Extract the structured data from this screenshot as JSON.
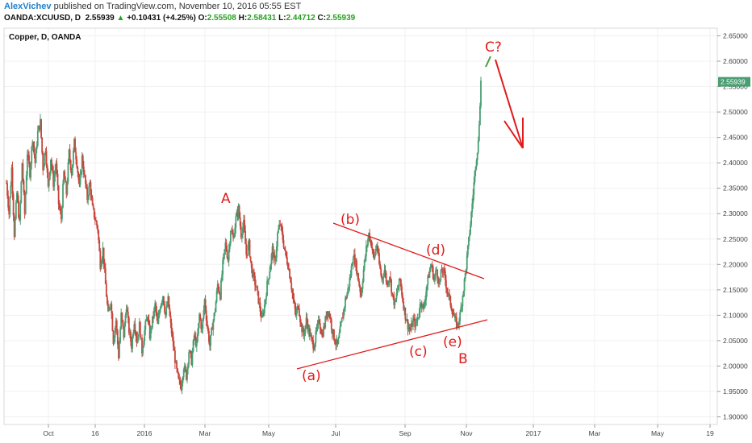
{
  "header": {
    "author": "AlexVichev",
    "published": "published on TradingView.com, November 10, 2016 05:55 EST",
    "symbol": "OANDA:XCUUSD, D",
    "last": "2.55939",
    "change_arrow": "▲",
    "change": "+0.10431 (+4.25%)",
    "o_label": "O:",
    "o_value": "2.55508",
    "h_label": "H:",
    "h_value": "2.58431",
    "l_label": "L:",
    "l_value": "2.44712",
    "c_label": "C:",
    "c_value": "2.55939"
  },
  "chart_data": {
    "type": "candlestick",
    "title": "Copper, D, OANDA",
    "x_ticks": [
      "Oct",
      "16",
      "2016",
      "Mar",
      "May",
      "Jul",
      "Sep",
      "Nov",
      "2017",
      "Mar",
      "May",
      "19"
    ],
    "y_ticks": [
      "2.65000",
      "2.60000",
      "2.55000",
      "2.50000",
      "2.45000",
      "2.40000",
      "2.35000",
      "2.30000",
      "2.25000",
      "2.20000",
      "2.15000",
      "2.10000",
      "2.05000",
      "2.00000",
      "1.95000",
      "1.90000"
    ],
    "ylim": [
      1.885,
      2.665
    ],
    "current_price_label": "2.55939",
    "current_price": 2.55939,
    "colors": {
      "up": "#4a9e73",
      "down": "#c8463c",
      "annotation": "#e01b1b",
      "price_tag": "#4a9e73"
    },
    "price_path": [
      2.36,
      2.3,
      2.39,
      2.26,
      2.34,
      2.28,
      2.4,
      2.3,
      2.42,
      2.38,
      2.45,
      2.4,
      2.46,
      2.48,
      2.39,
      2.43,
      2.35,
      2.41,
      2.36,
      2.4,
      2.32,
      2.29,
      2.38,
      2.34,
      2.42,
      2.38,
      2.44,
      2.4,
      2.35,
      2.41,
      2.37,
      2.33,
      2.36,
      2.31,
      2.29,
      2.27,
      2.2,
      2.23,
      2.16,
      2.1,
      2.13,
      2.05,
      2.09,
      2.02,
      2.1,
      2.06,
      2.12,
      2.07,
      2.04,
      2.09,
      2.05,
      2.08,
      2.03,
      2.07,
      2.1,
      2.06,
      2.09,
      2.12,
      2.08,
      2.12,
      2.14,
      2.1,
      2.13,
      2.08,
      2.04,
      2.0,
      1.97,
      1.96,
      2.0,
      1.98,
      2.03,
      2.01,
      2.06,
      2.04,
      2.1,
      2.07,
      2.13,
      2.08,
      2.04,
      2.08,
      2.11,
      2.16,
      2.14,
      2.2,
      2.24,
      2.21,
      2.27,
      2.25,
      2.29,
      2.31,
      2.26,
      2.28,
      2.22,
      2.24,
      2.19,
      2.17,
      2.15,
      2.12,
      2.09,
      2.12,
      2.16,
      2.19,
      2.23,
      2.2,
      2.26,
      2.28,
      2.25,
      2.22,
      2.2,
      2.17,
      2.13,
      2.1,
      2.12,
      2.08,
      2.06,
      2.09,
      2.07,
      2.05,
      2.04,
      2.07,
      2.09,
      2.06,
      2.08,
      2.11,
      2.1,
      2.07,
      2.05,
      2.04,
      2.07,
      2.1,
      2.13,
      2.15,
      2.18,
      2.22,
      2.2,
      2.17,
      2.14,
      2.19,
      2.23,
      2.26,
      2.24,
      2.21,
      2.24,
      2.2,
      2.17,
      2.19,
      2.16,
      2.18,
      2.14,
      2.12,
      2.15,
      2.17,
      2.13,
      2.1,
      2.08,
      2.07,
      2.09,
      2.08,
      2.1,
      2.13,
      2.11,
      2.15,
      2.18,
      2.2,
      2.17,
      2.19,
      2.16,
      2.19,
      2.18,
      2.15,
      2.13,
      2.11,
      2.09,
      2.08,
      2.1,
      2.14,
      2.18,
      2.23,
      2.28,
      2.34,
      2.4,
      2.44,
      2.56
    ],
    "annotations": {
      "A": "A",
      "b": "(b)",
      "d": "(d)",
      "c": "(c)",
      "a": "(a)",
      "e": "(e)",
      "B": "B",
      "C": "C?"
    }
  }
}
